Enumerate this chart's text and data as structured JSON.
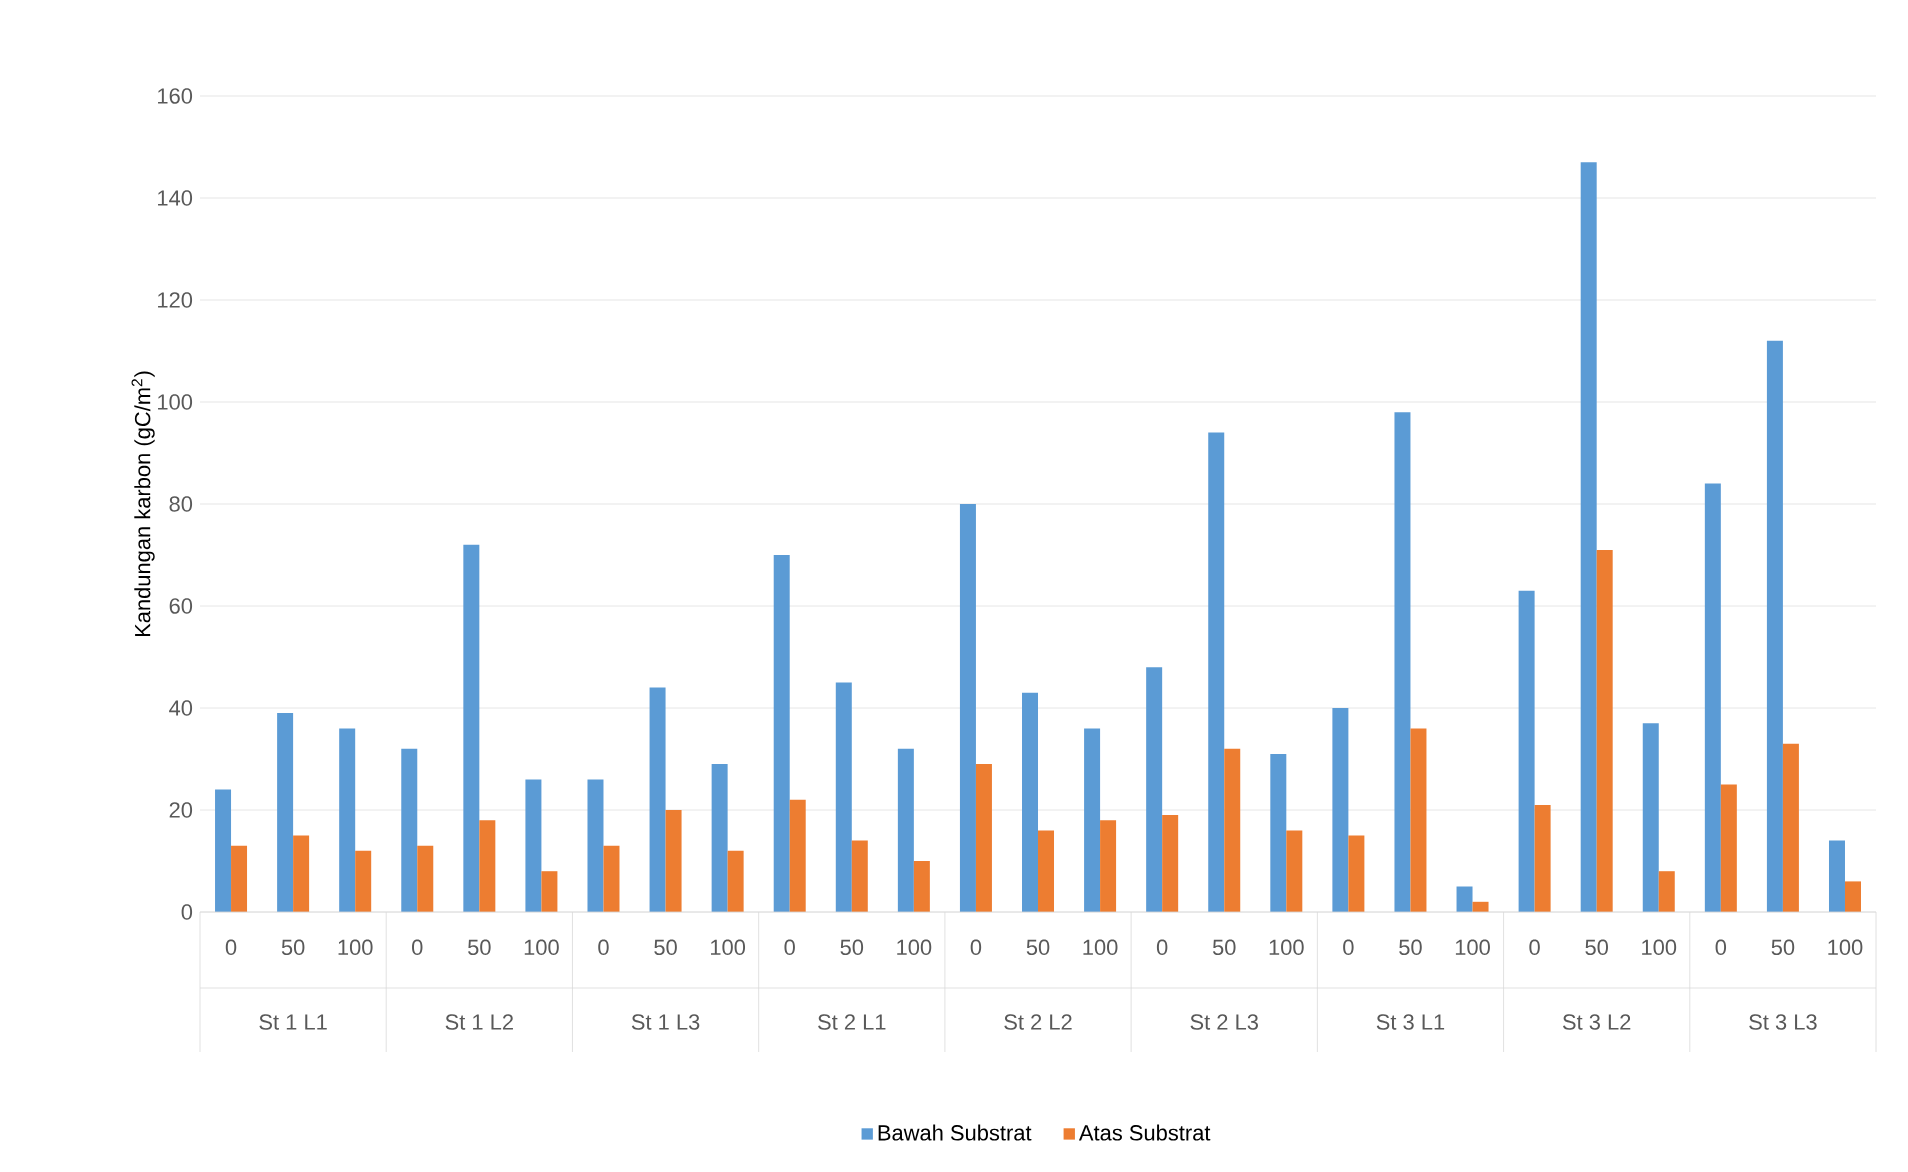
{
  "chart_data": {
    "type": "bar",
    "ylabel": "Kandungan karbon (gC/m$^{2}$)",
    "categories": [
      "0",
      "50",
      "100",
      "0",
      "50",
      "100",
      "0",
      "50",
      "100",
      "0",
      "50",
      "100",
      "0",
      "50",
      "100",
      "0",
      "50",
      "100",
      "0",
      "50",
      "100",
      "0",
      "50",
      "100",
      "0",
      "50",
      "100"
    ],
    "annotations": [
      "St 1 L1",
      "St 1 L2",
      "St 1 L3",
      "St 2 L1",
      "St 2 L2",
      "St 2 L3",
      "St 3 L1",
      "St 3 L2",
      "St 3 L3"
    ],
    "series": [
      {
        "name": "Bawah Substrat",
        "color": "#5b9bd5",
        "values": [
          24,
          39,
          36,
          32,
          72,
          26,
          26,
          44,
          29,
          70,
          45,
          32,
          80,
          43,
          36,
          48,
          94,
          31,
          40,
          98,
          5,
          63,
          147,
          37,
          84,
          112,
          14
        ]
      },
      {
        "name": "Atas Substrat",
        "color": "#ed7d31",
        "values": [
          13,
          15,
          12,
          13,
          18,
          8,
          13,
          20,
          12,
          22,
          14,
          10,
          29,
          16,
          18,
          19,
          32,
          16,
          15,
          36,
          2,
          21,
          71,
          8,
          25,
          33,
          6
        ]
      }
    ],
    "ylim": [
      0,
      160
    ],
    "yticks": [
      0,
      20,
      40,
      60,
      80,
      100,
      120,
      140,
      160
    ],
    "grid": "y",
    "legend": "bottom"
  }
}
